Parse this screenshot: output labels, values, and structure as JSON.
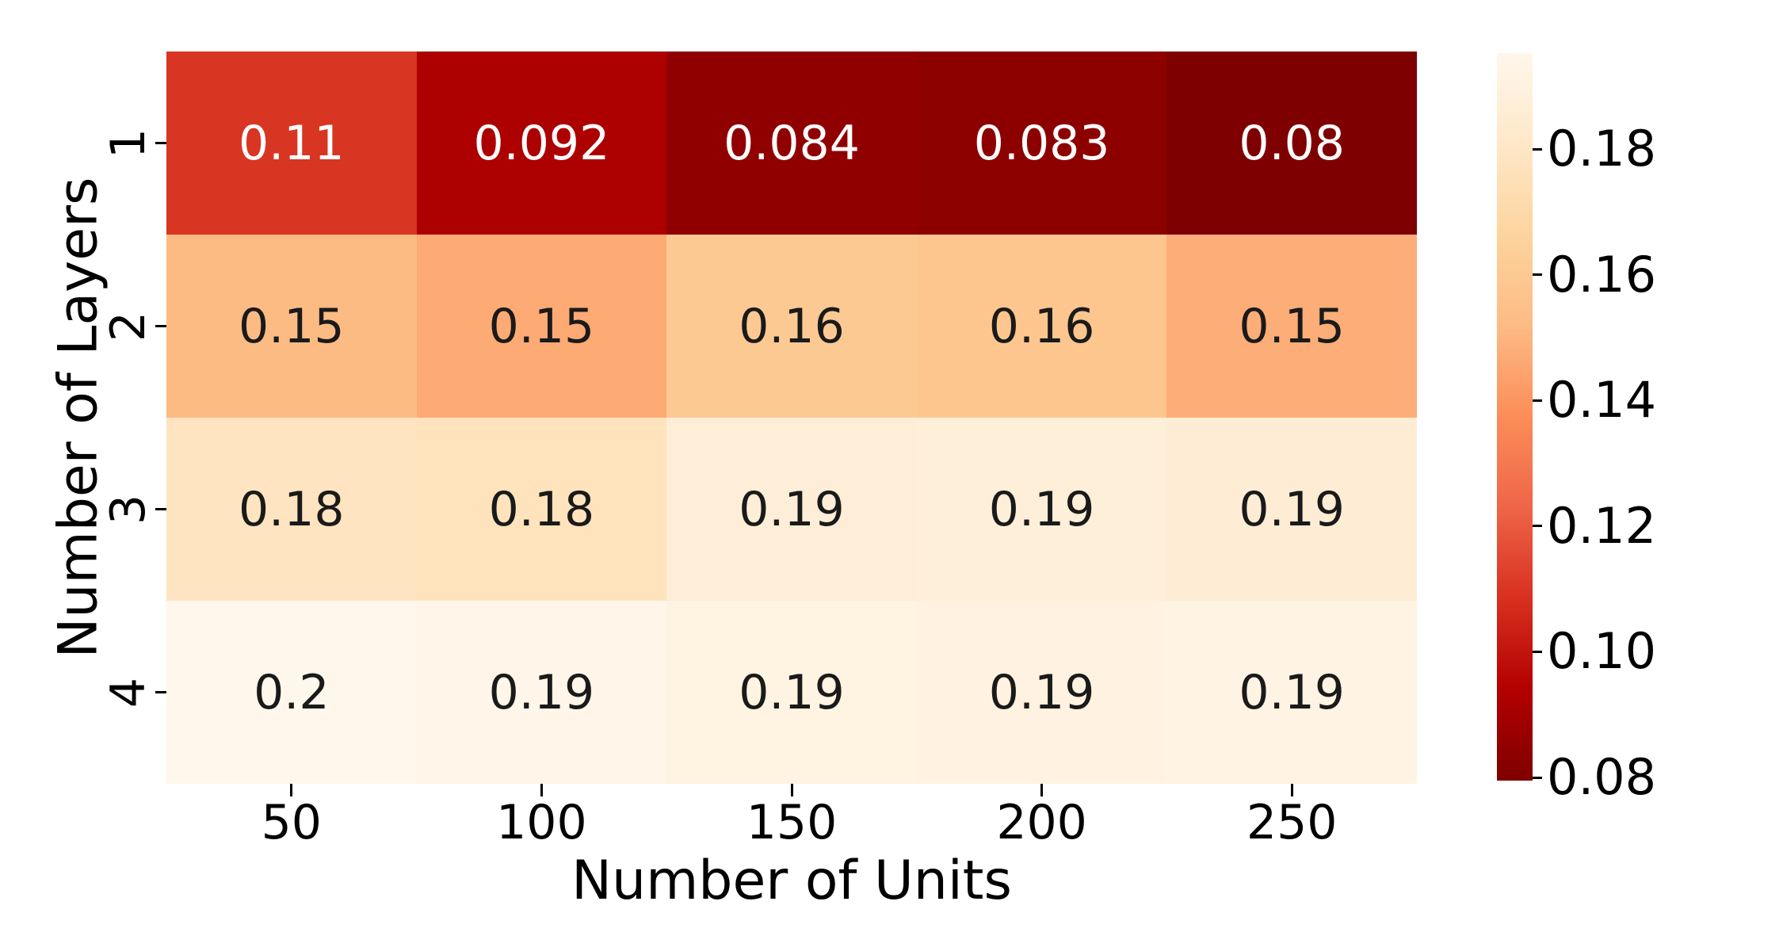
{
  "chart_data": {
    "type": "heatmap",
    "title": "",
    "xlabel": "Number of Units",
    "ylabel": "Number of Layers",
    "x_categories": [
      "50",
      "100",
      "150",
      "200",
      "250"
    ],
    "y_categories": [
      "1",
      "2",
      "3",
      "4"
    ],
    "cell_labels": [
      [
        "0.11",
        "0.092",
        "0.084",
        "0.083",
        "0.08"
      ],
      [
        "0.15",
        "0.15",
        "0.16",
        "0.16",
        "0.15"
      ],
      [
        "0.18",
        "0.18",
        "0.19",
        "0.19",
        "0.19"
      ],
      [
        "0.2",
        "0.19",
        "0.19",
        "0.19",
        "0.19"
      ]
    ],
    "cell_values": [
      [
        0.1098,
        0.0922,
        0.0842,
        0.0834,
        0.0795
      ],
      [
        0.152,
        0.1465,
        0.16,
        0.158,
        0.1475
      ],
      [
        0.178,
        0.1772,
        0.1868,
        0.1872,
        0.1858
      ],
      [
        0.1953,
        0.1938,
        0.191,
        0.1905,
        0.1915
      ]
    ],
    "vmin": 0.0795,
    "vmax": 0.1953,
    "colormap": {
      "name": "OrRd_r",
      "stops_low_to_high": [
        "#7f0000",
        "#b30000",
        "#d7301f",
        "#ef6548",
        "#fc8d59",
        "#fdbb84",
        "#fdd49e",
        "#fee8c8",
        "#fff7ec"
      ]
    },
    "annotation_colors": {
      "on_dark": "#ffffff",
      "on_light": "#1a1a1a"
    },
    "axis_text_color": "#000000",
    "background": "#ffffff",
    "grid": false,
    "legend_position": "none",
    "colorbar": {
      "position": "right",
      "tick_labels": [
        "0.18",
        "0.16",
        "0.14",
        "0.12",
        "0.10",
        "0.08"
      ],
      "tick_values": [
        0.18,
        0.16,
        0.14,
        0.12,
        0.1,
        0.08
      ]
    }
  }
}
